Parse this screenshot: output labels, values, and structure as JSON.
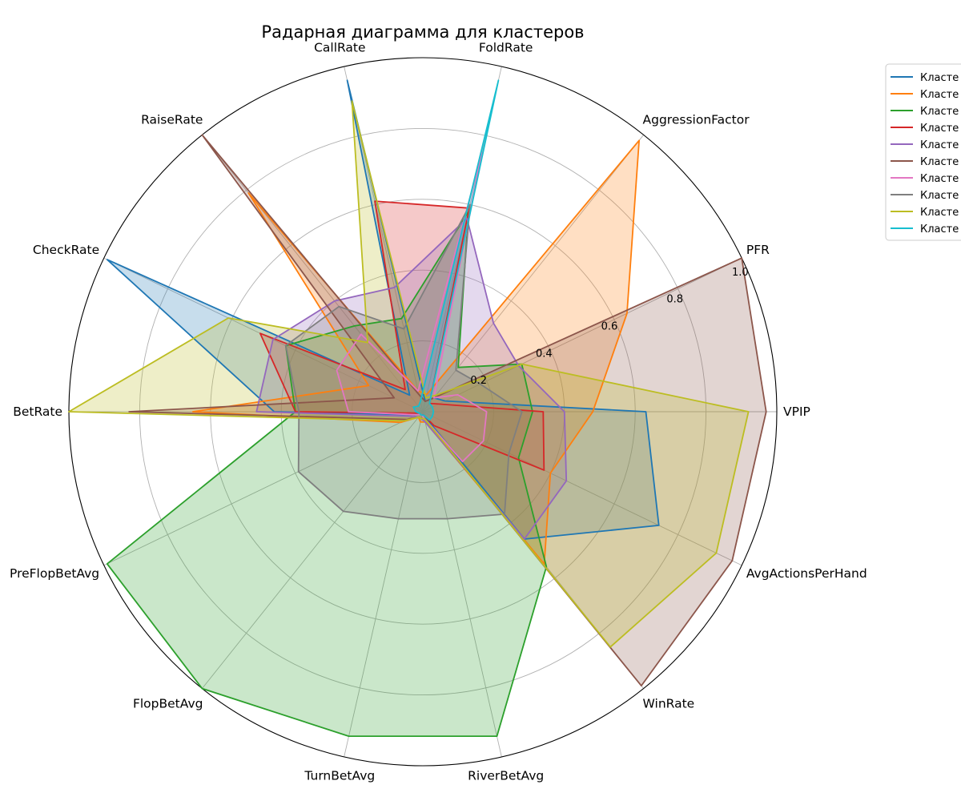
{
  "chart_data": {
    "type": "radar",
    "title": "Радарная диаграмма для кластеров",
    "axes": [
      "VPIP",
      "PFR",
      "AggressionFactor",
      "FoldRate",
      "CallRate",
      "RaiseRate",
      "CheckRate",
      "BetRate",
      "PreFlopBetAvg",
      "FlopBetAvg",
      "TurnBetAvg",
      "RiverBetAvg",
      "WinRate",
      "AvgActionsPerHand"
    ],
    "rlim": [
      0,
      1.0
    ],
    "rticks": [
      "0.2",
      "0.4",
      "0.6",
      "0.8",
      "1.0"
    ],
    "grid": true,
    "legend_position": "upper-right-outside",
    "series": [
      {
        "name": "Класте",
        "color": "#1f77b4",
        "values": [
          0.63,
          0.07,
          0.05,
          0.03,
          0.96,
          0.06,
          0.99,
          0.42,
          0.02,
          0.01,
          0.01,
          0.01,
          0.46,
          0.74
        ]
      },
      {
        "name": "Класте",
        "color": "#ff7f0e",
        "values": [
          0.48,
          0.64,
          0.98,
          0.05,
          0.06,
          0.79,
          0.17,
          0.65,
          0.07,
          0.02,
          0.03,
          0.03,
          0.55,
          0.4
        ]
      },
      {
        "name": "Класте",
        "color": "#2ca02c",
        "values": [
          0.31,
          0.31,
          0.16,
          0.58,
          0.27,
          0.31,
          0.43,
          0.36,
          0.99,
          1.0,
          0.94,
          0.94,
          0.56,
          0.3
        ]
      },
      {
        "name": "Класте",
        "color": "#d62728",
        "values": [
          0.34,
          0.05,
          0.03,
          0.59,
          0.61,
          0.08,
          0.51,
          0.36,
          0.01,
          0.01,
          0.01,
          0.01,
          0.05,
          0.38
        ]
      },
      {
        "name": "Класте",
        "color": "#9467bd",
        "values": [
          0.4,
          0.3,
          0.32,
          0.56,
          0.36,
          0.4,
          0.47,
          0.47,
          0.03,
          0.02,
          0.02,
          0.03,
          0.46,
          0.45
        ]
      },
      {
        "name": "Класте",
        "color": "#8c564b",
        "values": [
          0.97,
          1.0,
          0.05,
          0.03,
          0.05,
          1.0,
          0.09,
          0.83,
          0.05,
          0.02,
          0.02,
          0.02,
          0.99,
          0.97
        ]
      },
      {
        "name": "Класте",
        "color": "#e377c2",
        "values": [
          0.18,
          0.11,
          0.05,
          0.75,
          0.06,
          0.28,
          0.27,
          0.21,
          0.02,
          0.01,
          0.01,
          0.02,
          0.18,
          0.19
        ]
      },
      {
        "name": "Класте",
        "color": "#7f7f7f",
        "values": [
          0.28,
          0.18,
          0.15,
          0.6,
          0.24,
          0.38,
          0.43,
          0.35,
          0.39,
          0.36,
          0.31,
          0.31,
          0.37,
          0.27
        ]
      },
      {
        "name": "Класте",
        "color": "#bcbd22",
        "values": [
          0.92,
          0.31,
          0.06,
          0.04,
          0.9,
          0.25,
          0.61,
          1.0,
          0.06,
          0.02,
          0.02,
          0.02,
          0.85,
          0.92
        ]
      },
      {
        "name": "Класте",
        "color": "#17becf",
        "values": [
          0.03,
          0.03,
          0.03,
          0.96,
          0.03,
          0.02,
          0.03,
          0.02,
          0.01,
          0.01,
          0.01,
          0.01,
          0.03,
          0.03
        ]
      }
    ]
  }
}
